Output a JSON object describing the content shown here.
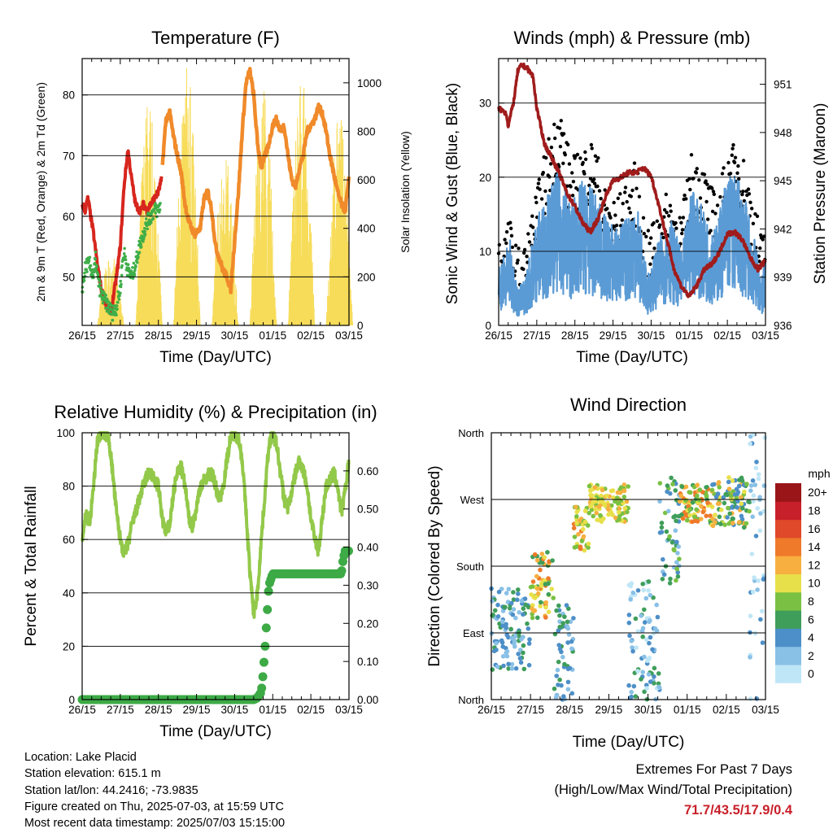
{
  "panels": {
    "temperature": {
      "title": "Temperature (F)",
      "xlabel": "Time (Day/UTC)",
      "ylabel_left": "2m & 9m T (Red, Orange) & 2m Td (Green)",
      "ylabel_right": "Solar Insolation (Yellow)"
    },
    "winds": {
      "title": "Winds (mph) & Pressure (mb)",
      "xlabel": "Time (Day/UTC)",
      "ylabel_left": "Sonic Wind & Gust (Blue, Black)",
      "ylabel_right": "Station Pressure (Maroon)"
    },
    "humidity": {
      "title": "Relative Humidity (%) & Precipitation (in)",
      "xlabel": "Time (Day/UTC)",
      "ylabel_left": "Percent & Total Rainfall"
    },
    "direction": {
      "title": "Wind Direction",
      "xlabel": "Time (Day/UTC)",
      "ylabel_left": "Direction (Colored By Speed)",
      "legend_title": "mph"
    }
  },
  "x_tick_labels": [
    "26/15",
    "27/15",
    "28/15",
    "29/15",
    "30/15",
    "01/15",
    "02/15",
    "03/15"
  ],
  "colors": {
    "temp_2m": "#d7261e",
    "temp_9m": "#f08a2a",
    "dewpoint": "#3fae49",
    "solar": "#f7dc5a",
    "wind": "#5b9bd5",
    "gust": "#000000",
    "pressure": "#a01c1c",
    "rh": "#93c94a",
    "precip": "#3daa46"
  },
  "info": {
    "location": "Location: Lake Placid",
    "elevation": "Station elevation: 615.1 m",
    "latlon": "Station lat/lon: 44.2416; -73.9835",
    "created": "Figure created on Thu, 2025-07-03, at 15:59 UTC",
    "recent": "Most recent data timestamp: 2025/07/03 15:15:00",
    "extremes_title": "Extremes For Past 7 Days",
    "extremes_sub": "(High/Low/Max Wind/Total Precipitation)",
    "extremes_value": "71.7/43.5/17.9/0.4"
  },
  "chart_data": [
    {
      "type": "line",
      "title": "Temperature (F)",
      "xlabel": "Time (Day/UTC)",
      "ylabel": "2m & 9m T (Red, Orange) & 2m Td (Green)",
      "y2label": "Solar Insolation (Yellow)",
      "x_range_days": [
        0,
        7
      ],
      "ylim": [
        42,
        86
      ],
      "y_ticks": [
        50,
        60,
        70,
        80
      ],
      "y2lim": [
        0,
        1100
      ],
      "y2_ticks": [
        0,
        200,
        400,
        600,
        800,
        1000
      ],
      "series": [
        {
          "name": "2m T",
          "color": "#d7261e",
          "x": [
            0,
            0.08,
            0.15,
            0.2,
            0.3,
            0.4,
            0.5,
            0.55,
            0.65,
            0.75,
            0.8,
            0.9,
            1.0,
            1.1,
            1.2,
            1.3,
            1.4,
            1.5,
            1.55,
            1.6,
            1.7,
            1.8,
            1.9,
            2.0,
            2.08
          ],
          "y": [
            62,
            61,
            63,
            61,
            57,
            52,
            48,
            47,
            45,
            44,
            46,
            50,
            55,
            65,
            71,
            66,
            62,
            61,
            61,
            62,
            61,
            62,
            63,
            64,
            66
          ]
        },
        {
          "name": "9m T",
          "color": "#f08a2a",
          "x": [
            2.1,
            2.2,
            2.3,
            2.4,
            2.5,
            2.6,
            2.7,
            2.8,
            2.95,
            3.1,
            3.2,
            3.3,
            3.4,
            3.5,
            3.6,
            3.7,
            3.8,
            3.9,
            4.0,
            4.1,
            4.2,
            4.3,
            4.4,
            4.5,
            4.6,
            4.7,
            4.8,
            4.9,
            5.0,
            5.1,
            5.2,
            5.3,
            5.4,
            5.5,
            5.6,
            5.7,
            5.8,
            5.9,
            6.0,
            6.1,
            6.2,
            6.3,
            6.4,
            6.5,
            6.6,
            6.7,
            6.8,
            6.9,
            7.0
          ],
          "y": [
            68,
            76,
            77,
            73,
            70,
            67,
            62,
            59,
            57,
            58,
            63,
            64,
            61,
            55,
            53,
            51,
            50,
            48,
            56,
            64,
            74,
            82,
            84,
            80,
            72,
            68,
            70,
            72,
            75,
            76,
            74,
            75,
            70,
            66,
            65,
            68,
            70,
            74,
            75,
            76,
            78,
            77,
            74,
            70,
            67,
            64,
            62,
            61,
            66
          ]
        },
        {
          "name": "2m Td",
          "color": "#3fae49",
          "x": [
            0,
            0.1,
            0.2,
            0.3,
            0.35,
            0.4,
            0.5,
            0.6,
            0.7,
            0.8,
            0.9,
            1.0,
            1.05,
            1.1,
            1.2,
            1.3,
            1.4,
            1.5,
            1.6,
            1.7,
            1.8,
            1.9,
            2.0,
            2.05
          ],
          "y": [
            48,
            52,
            52,
            50,
            53,
            50,
            47,
            46,
            45,
            44,
            45,
            48,
            52,
            54,
            51,
            50,
            52,
            55,
            57,
            59,
            60,
            61,
            61,
            62
          ]
        },
        {
          "name": "Solar",
          "color": "#f7dc5a",
          "day_peaks": [
            0.75,
            1.75,
            2.75,
            3.75,
            4.75,
            5.75,
            6.75
          ],
          "peak_values": [
            300,
            950,
            1080,
            720,
            1000,
            1030,
            880
          ]
        }
      ]
    },
    {
      "type": "line",
      "title": "Winds (mph) & Pressure (mb)",
      "xlabel": "Time (Day/UTC)",
      "ylabel": "Sonic Wind & Gust (Blue, Black)",
      "y2label": "Station Pressure (Maroon)",
      "x_range_days": [
        0,
        7
      ],
      "ylim": [
        0,
        36
      ],
      "y_ticks": [
        0,
        10,
        20,
        30
      ],
      "y2lim": [
        936,
        952.6
      ],
      "y2_ticks": [
        936,
        939,
        942,
        945,
        948,
        951
      ],
      "series": [
        {
          "name": "Sonic Wind",
          "color": "#5b9bd5",
          "x": [
            0,
            0.3,
            0.5,
            0.7,
            1.0,
            1.3,
            1.6,
            1.9,
            2.2,
            2.5,
            2.8,
            3.1,
            3.4,
            3.6,
            3.9,
            4.2,
            4.5,
            4.8,
            5.1,
            5.4,
            5.7,
            6.0,
            6.3,
            6.6,
            6.9,
            7.0
          ],
          "y": [
            5,
            7,
            3,
            4,
            9,
            11,
            13,
            10,
            12,
            11,
            9,
            8,
            9,
            11,
            4,
            7,
            9,
            6,
            12,
            9,
            8,
            13,
            12,
            9,
            4,
            6
          ]
        },
        {
          "name": "Gust",
          "color": "#000000",
          "x": [
            0,
            0.3,
            0.5,
            0.7,
            1.0,
            1.3,
            1.6,
            1.9,
            2.2,
            2.5,
            2.8,
            3.1,
            3.4,
            3.6,
            3.9,
            4.2,
            4.5,
            4.8,
            5.1,
            5.4,
            5.7,
            6.0,
            6.3,
            6.6,
            6.9,
            7.0
          ],
          "y": [
            8,
            10,
            6,
            7,
            14,
            21,
            26,
            18,
            20,
            21,
            14,
            13,
            15,
            18,
            8,
            12,
            14,
            11,
            20,
            17,
            13,
            19,
            21,
            15,
            8,
            12
          ]
        },
        {
          "name": "Station Pressure",
          "color": "#a01c1c",
          "x": [
            0,
            0.2,
            0.25,
            0.4,
            0.5,
            0.6,
            0.75,
            0.9,
            1.0,
            1.2,
            1.4,
            1.6,
            1.8,
            2.0,
            2.2,
            2.4,
            2.6,
            2.8,
            3.0,
            3.2,
            3.4,
            3.6,
            3.8,
            4.0,
            4.2,
            4.4,
            4.6,
            4.8,
            5.0,
            5.2,
            5.4,
            5.6,
            5.8,
            6.0,
            6.2,
            6.4,
            6.6,
            6.8,
            7.0
          ],
          "y": [
            949.5,
            949.2,
            948.4,
            950,
            951.8,
            952.2,
            952,
            951.5,
            949.5,
            947.3,
            946.4,
            945.4,
            944.2,
            943.4,
            942.4,
            941.8,
            942.6,
            944,
            945,
            945.2,
            945.5,
            945.5,
            945.8,
            945.3,
            943.5,
            941.5,
            939.5,
            938.4,
            937.8,
            938.5,
            939.5,
            939.8,
            940.6,
            941.7,
            941.8,
            941.3,
            940.2,
            939.5,
            940.0
          ]
        }
      ]
    },
    {
      "type": "line",
      "title": "Relative Humidity (%) & Precipitation (in)",
      "xlabel": "Time (Day/UTC)",
      "ylabel": "Percent & Total Rainfall",
      "x_range_days": [
        0,
        7
      ],
      "ylim": [
        0,
        100
      ],
      "y_ticks": [
        0,
        20,
        40,
        60,
        80,
        100
      ],
      "y2lim": [
        0,
        0.7
      ],
      "y2_ticks": [
        0.0,
        0.1,
        0.2,
        0.3,
        0.4,
        0.5,
        0.6
      ],
      "series": [
        {
          "name": "Relative Humidity",
          "color": "#93c94a",
          "x": [
            0,
            0.1,
            0.2,
            0.3,
            0.4,
            0.5,
            0.6,
            0.7,
            0.8,
            0.9,
            1.0,
            1.1,
            1.2,
            1.3,
            1.4,
            1.5,
            1.6,
            1.7,
            1.8,
            1.9,
            2.0,
            2.1,
            2.2,
            2.3,
            2.4,
            2.5,
            2.6,
            2.7,
            2.8,
            2.9,
            3.0,
            3.1,
            3.2,
            3.3,
            3.4,
            3.5,
            3.6,
            3.7,
            3.8,
            3.9,
            4.0,
            4.1,
            4.2,
            4.3,
            4.4,
            4.5,
            4.6,
            4.7,
            4.8,
            4.9,
            5.0,
            5.1,
            5.2,
            5.3,
            5.4,
            5.5,
            5.6,
            5.7,
            5.8,
            5.9,
            6.0,
            6.1,
            6.2,
            6.3,
            6.4,
            6.5,
            6.6,
            6.7,
            6.8,
            6.9,
            7.0
          ],
          "y": [
            60,
            70,
            66,
            80,
            97,
            100,
            100,
            98,
            85,
            70,
            60,
            55,
            58,
            65,
            70,
            75,
            80,
            84,
            85,
            82,
            80,
            68,
            62,
            66,
            78,
            85,
            87,
            80,
            68,
            65,
            72,
            80,
            82,
            84,
            85,
            80,
            75,
            80,
            90,
            99,
            100,
            98,
            90,
            70,
            48,
            32,
            40,
            60,
            78,
            96,
            99,
            96,
            85,
            75,
            72,
            78,
            85,
            90,
            86,
            80,
            68,
            60,
            56,
            68,
            80,
            82,
            85,
            80,
            70,
            78,
            90
          ]
        },
        {
          "name": "Total Rainfall (in)",
          "color": "#3daa46",
          "x": [
            0,
            4.5,
            4.6,
            4.7,
            4.75,
            4.8,
            4.85,
            4.9,
            5.0,
            6.8,
            6.85,
            6.9,
            7.0
          ],
          "y": [
            0.0,
            0.0,
            0.005,
            0.02,
            0.07,
            0.14,
            0.22,
            0.3,
            0.33,
            0.33,
            0.37,
            0.39,
            0.39
          ]
        }
      ]
    },
    {
      "type": "scatter",
      "title": "Wind Direction",
      "xlabel": "Time (Day/UTC)",
      "ylabel": "Direction (Colored By Speed)",
      "x_range_days": [
        0,
        7
      ],
      "y_tick_labels": [
        "North",
        "East",
        "South",
        "West",
        "North"
      ],
      "y_ticks_deg": [
        0,
        90,
        180,
        270,
        360
      ],
      "color_scale": {
        "title": "mph",
        "labels": [
          "0",
          "2",
          "4",
          "6",
          "8",
          "10",
          "12",
          "14",
          "16",
          "18",
          "20+"
        ],
        "colors": [
          "#bfe6f7",
          "#89c0e6",
          "#4d8fc8",
          "#3f9e5a",
          "#7ac143",
          "#e8e04a",
          "#f7b040",
          "#ef7a2a",
          "#e0492a",
          "#c8202a",
          "#9a1518"
        ]
      },
      "clusters": [
        {
          "t": [
            0.0,
            1.0
          ],
          "dir": [
            40,
            150
          ],
          "speed": [
            2,
            8
          ]
        },
        {
          "t": [
            1.0,
            1.6
          ],
          "dir": [
            110,
            200
          ],
          "speed": [
            6,
            16
          ]
        },
        {
          "t": [
            1.6,
            2.1
          ],
          "dir": [
            0,
            130
          ],
          "speed": [
            2,
            8
          ]
        },
        {
          "t": [
            2.1,
            2.5
          ],
          "dir": [
            200,
            260
          ],
          "speed": [
            8,
            16
          ]
        },
        {
          "t": [
            2.5,
            3.5
          ],
          "dir": [
            240,
            290
          ],
          "speed": [
            8,
            14
          ]
        },
        {
          "t": [
            3.5,
            4.3
          ],
          "dir": [
            0,
            160
          ],
          "speed": [
            0,
            8
          ]
        },
        {
          "t": [
            4.3,
            4.8
          ],
          "dir": [
            140,
            300
          ],
          "speed": [
            2,
            10
          ]
        },
        {
          "t": [
            4.8,
            5.6
          ],
          "dir": [
            240,
            290
          ],
          "speed": [
            6,
            16
          ]
        },
        {
          "t": [
            5.6,
            6.6
          ],
          "dir": [
            230,
            300
          ],
          "speed": [
            4,
            14
          ]
        },
        {
          "t": [
            6.6,
            7.0
          ],
          "dir": [
            0,
            360
          ],
          "speed": [
            0,
            6
          ]
        }
      ]
    }
  ]
}
